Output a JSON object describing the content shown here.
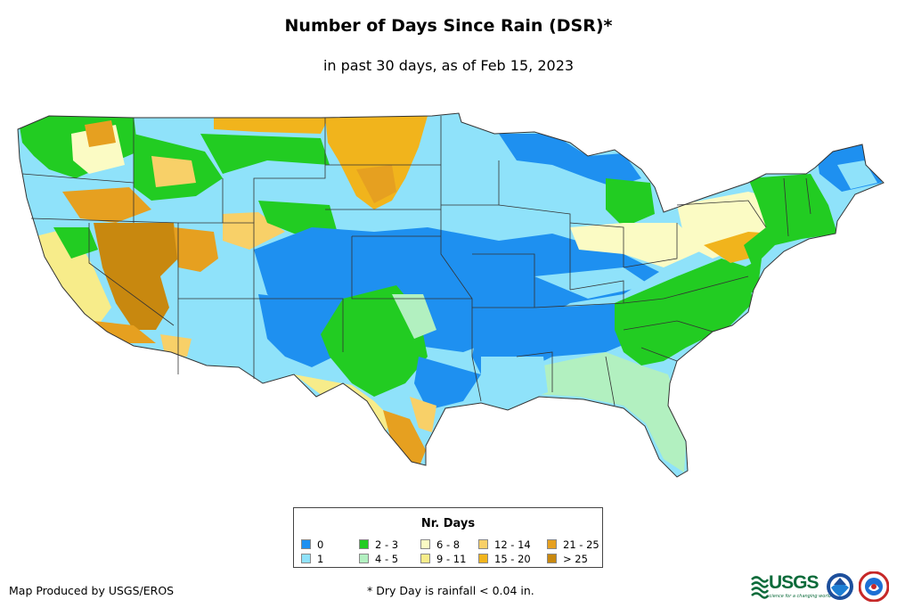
{
  "title": "Number of Days Since Rain (DSR)*",
  "subtitle": "in past 30 days, as of Feb 15, 2023",
  "legend": {
    "title": "Nr. Days",
    "items": [
      {
        "label": "0",
        "color": "#1e90f0"
      },
      {
        "label": "1",
        "color": "#8fe2fa"
      },
      {
        "label": "2 - 3",
        "color": "#22cc22"
      },
      {
        "label": "4 - 5",
        "color": "#b2f0c0"
      },
      {
        "label": "6 - 8",
        "color": "#fbfbc4"
      },
      {
        "label": "9 - 11",
        "color": "#f7ec8a"
      },
      {
        "label": "12 - 14",
        "color": "#f8d068"
      },
      {
        "label": "15 - 20",
        "color": "#f1b41c"
      },
      {
        "label": "21 - 25",
        "color": "#e6a020"
      },
      {
        "label": "> 25",
        "color": "#c8880f"
      }
    ]
  },
  "credit": "Map Produced by USGS/EROS",
  "footnote": "* Dry Day is rainfall < 0.04 in.",
  "logos": {
    "usgs": "USGS",
    "usgs_tagline": "science for a changing world",
    "noaa_icon": "noaa-logo-icon",
    "nws_icon": "nws-logo-icon"
  }
}
